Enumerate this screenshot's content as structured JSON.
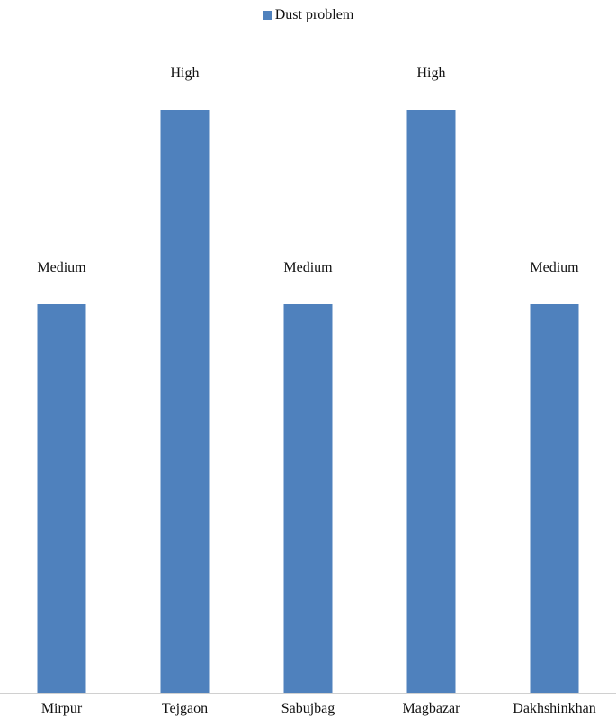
{
  "legend": {
    "label": "Dust problem",
    "swatch_color": "#4f81bd"
  },
  "chart_data": {
    "type": "bar",
    "categories": [
      "Mirpur",
      "Tejgaon",
      "Sabujbag",
      "Magbazar",
      "Dakhshinkhan"
    ],
    "series": [
      {
        "name": "Dust problem",
        "values": [
          2,
          3,
          2,
          3,
          2
        ],
        "data_labels": [
          "Medium",
          "High",
          "Medium",
          "High",
          "Medium"
        ],
        "color": "#4f81bd"
      }
    ],
    "ylim": [
      0,
      3
    ],
    "grid": false,
    "legend_position": "top"
  }
}
